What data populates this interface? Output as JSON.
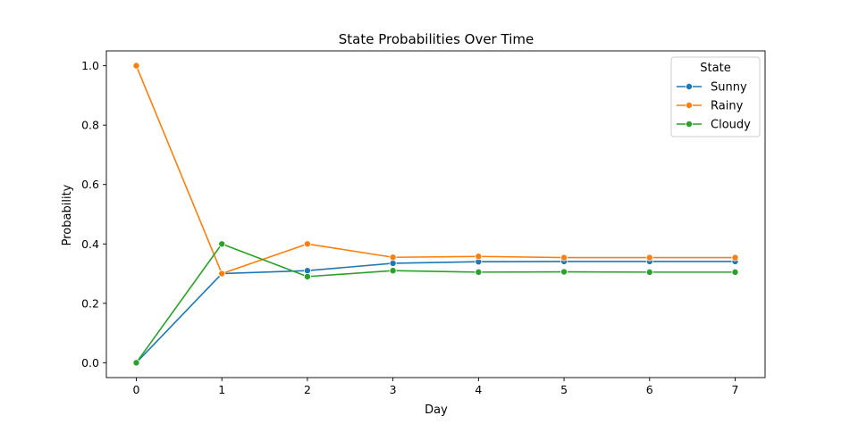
{
  "chart_data": {
    "type": "line",
    "title": "State Probabilities Over Time",
    "xlabel": "Day",
    "ylabel": "Probability",
    "x": [
      0,
      1,
      2,
      3,
      4,
      5,
      6,
      7
    ],
    "xlim": [
      -0.35,
      7.35
    ],
    "ylim": [
      -0.05,
      1.05
    ],
    "xticks": [
      0,
      1,
      2,
      3,
      4,
      5,
      6,
      7
    ],
    "yticks": [
      0.0,
      0.2,
      0.4,
      0.6,
      0.8,
      1.0
    ],
    "ytick_labels": [
      "0.0",
      "0.2",
      "0.4",
      "0.6",
      "0.8",
      "1.0"
    ],
    "grid": false,
    "legend": {
      "title": "State",
      "placement": "top-right"
    },
    "series": [
      {
        "name": "Sunny",
        "color": "#1f77b4",
        "values": [
          0.0,
          0.3,
          0.31,
          0.335,
          0.34,
          0.341,
          0.341,
          0.341
        ]
      },
      {
        "name": "Rainy",
        "color": "#ff7f0e",
        "values": [
          1.0,
          0.3,
          0.4,
          0.355,
          0.358,
          0.354,
          0.354,
          0.354
        ]
      },
      {
        "name": "Cloudy",
        "color": "#2ca02c",
        "values": [
          0.0,
          0.4,
          0.29,
          0.31,
          0.305,
          0.306,
          0.305,
          0.305
        ]
      }
    ]
  }
}
